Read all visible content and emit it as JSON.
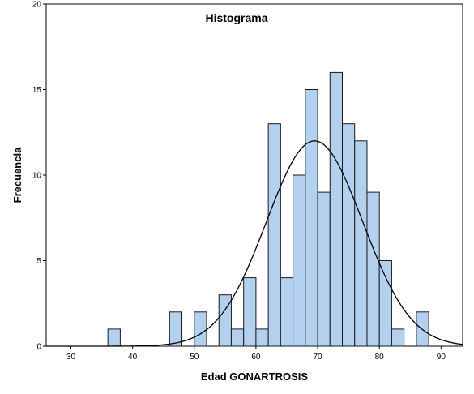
{
  "chart_data": {
    "type": "bar",
    "subtype": "histogram",
    "title": "Histograma",
    "xlabel": "Edad GONARTROSIS",
    "ylabel": "Frecuencia",
    "xlim": [
      26,
      93.5
    ],
    "ylim": [
      0,
      20
    ],
    "x_ticks": [
      30,
      40,
      50,
      60,
      70,
      80,
      90
    ],
    "y_ticks": [
      0,
      5,
      10,
      15,
      20
    ],
    "bin_width": 2,
    "bins": [
      {
        "start": 36,
        "end": 38,
        "count": 1
      },
      {
        "start": 46,
        "end": 48,
        "count": 2
      },
      {
        "start": 50,
        "end": 52,
        "count": 2
      },
      {
        "start": 54,
        "end": 56,
        "count": 3
      },
      {
        "start": 56,
        "end": 58,
        "count": 1
      },
      {
        "start": 58,
        "end": 60,
        "count": 4
      },
      {
        "start": 60,
        "end": 62,
        "count": 1
      },
      {
        "start": 62,
        "end": 64,
        "count": 13
      },
      {
        "start": 64,
        "end": 66,
        "count": 4
      },
      {
        "start": 66,
        "end": 68,
        "count": 10
      },
      {
        "start": 68,
        "end": 70,
        "count": 15
      },
      {
        "start": 70,
        "end": 72,
        "count": 9
      },
      {
        "start": 72,
        "end": 74,
        "count": 16
      },
      {
        "start": 74,
        "end": 76,
        "count": 13
      },
      {
        "start": 76,
        "end": 78,
        "count": 12
      },
      {
        "start": 78,
        "end": 80,
        "count": 9
      },
      {
        "start": 80,
        "end": 82,
        "count": 5
      },
      {
        "start": 82,
        "end": 84,
        "count": 1
      },
      {
        "start": 86,
        "end": 88,
        "count": 2
      }
    ],
    "normal_curve": {
      "mean": 69.5,
      "sd": 7.8,
      "peak": 12
    },
    "grid": false,
    "colors": {
      "bar_fill": "#b3d1ef",
      "bar_stroke": "#1a1a1a",
      "curve": "#000000",
      "plot_bg": "#ffffff",
      "frame": "#000000"
    }
  }
}
